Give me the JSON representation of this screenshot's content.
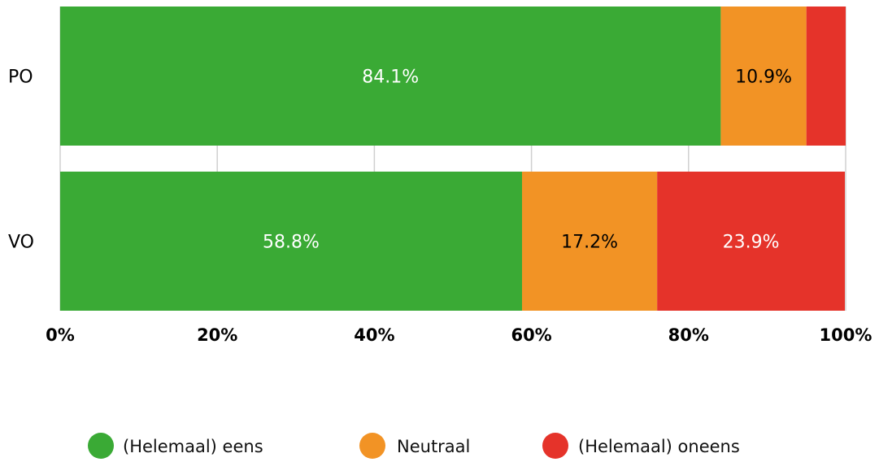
{
  "chart_data": {
    "type": "bar",
    "orientation": "horizontal",
    "stacked": true,
    "categories": [
      "PO",
      "VO"
    ],
    "series": [
      {
        "name": "(Helemaal) eens",
        "color": "#3aaa35",
        "label_color": "#ffffff",
        "values": [
          84.1,
          58.8
        ],
        "labels": [
          "84.1%",
          "58.8%"
        ]
      },
      {
        "name": "Neutraal",
        "color": "#f29325",
        "label_color": "#000000",
        "values": [
          10.9,
          17.2
        ],
        "labels": [
          "10.9%",
          "17.2%"
        ]
      },
      {
        "name": "(Helemaal) oneens",
        "color": "#e5332a",
        "label_color": "#ffffff",
        "values": [
          5.0,
          23.9
        ],
        "labels": [
          "",
          "23.9%"
        ]
      }
    ],
    "x_ticks": [
      "0%",
      "20%",
      "40%",
      "60%",
      "80%",
      "100%"
    ],
    "xlim": [
      0,
      100
    ],
    "grid": true,
    "legend": "bottom"
  }
}
